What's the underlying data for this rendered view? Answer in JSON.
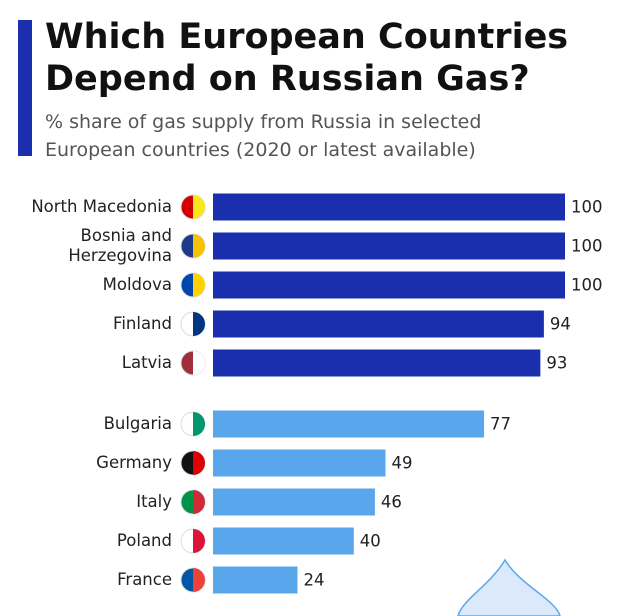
{
  "chart_data": {
    "type": "bar",
    "title": "Which European Countries Depend on Russian Gas?",
    "subtitle": "% share of gas supply from Russia in selected European countries (2020 or latest available)",
    "categories": [
      "North Macedonia",
      "Bosnia and Herzegovina",
      "Moldova",
      "Finland",
      "Latvia",
      "Bulgaria",
      "Germany",
      "Italy",
      "Poland",
      "France"
    ],
    "values": [
      100,
      100,
      100,
      94,
      93,
      77,
      49,
      46,
      40,
      24
    ],
    "colors": [
      "#1a2fae",
      "#1a2fae",
      "#1a2fae",
      "#1a2fae",
      "#1a2fae",
      "#5aa6ec",
      "#5aa6ec",
      "#5aa6ec",
      "#5aa6ec",
      "#5aa6ec"
    ]
  }
}
